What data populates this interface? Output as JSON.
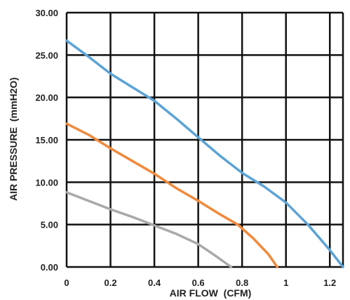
{
  "chart_data": {
    "type": "line",
    "xlabel": "AIR FLOW  (CFM)",
    "ylabel": "AIR PRESSURE  (mmH2O)",
    "xlim": [
      0,
      1.26
    ],
    "ylim": [
      0,
      30
    ],
    "x_ticks": [
      0,
      0.2,
      0.4,
      0.6,
      0.8,
      1.0,
      1.2
    ],
    "x_tick_labels": [
      "0",
      "0.2",
      "0.4",
      "0.6",
      "0.8",
      "1",
      "1.2"
    ],
    "y_ticks": [
      0,
      5,
      10,
      15,
      20,
      25,
      30
    ],
    "y_tick_labels": [
      "0.00",
      "5.00",
      "10.00",
      "15.00",
      "20.00",
      "25.00",
      "30.00"
    ],
    "grid": true,
    "series": [
      {
        "color": "#5ba3d6",
        "points": [
          [
            0,
            26.7
          ],
          [
            0.1,
            24.8
          ],
          [
            0.2,
            22.8
          ],
          [
            0.3,
            21.2
          ],
          [
            0.4,
            19.6
          ],
          [
            0.5,
            17.5
          ],
          [
            0.6,
            15.3
          ],
          [
            0.7,
            13.1
          ],
          [
            0.8,
            11.1
          ],
          [
            0.9,
            9.5
          ],
          [
            1.0,
            7.6
          ],
          [
            1.1,
            5.0
          ],
          [
            1.2,
            2.0
          ],
          [
            1.26,
            0
          ]
        ]
      },
      {
        "color": "#f08a3c",
        "points": [
          [
            0,
            16.9
          ],
          [
            0.1,
            15.6
          ],
          [
            0.2,
            14.0
          ],
          [
            0.3,
            12.5
          ],
          [
            0.4,
            11.0
          ],
          [
            0.5,
            9.3
          ],
          [
            0.6,
            7.8
          ],
          [
            0.7,
            6.2
          ],
          [
            0.78,
            5.0
          ],
          [
            0.85,
            3.4
          ],
          [
            0.92,
            1.5
          ],
          [
            0.96,
            0
          ]
        ]
      },
      {
        "color": "#a9a9a9",
        "points": [
          [
            0,
            8.8
          ],
          [
            0.1,
            7.8
          ],
          [
            0.2,
            6.8
          ],
          [
            0.3,
            5.9
          ],
          [
            0.4,
            4.9
          ],
          [
            0.5,
            3.9
          ],
          [
            0.6,
            2.7
          ],
          [
            0.68,
            1.3
          ],
          [
            0.75,
            0
          ]
        ]
      }
    ]
  }
}
